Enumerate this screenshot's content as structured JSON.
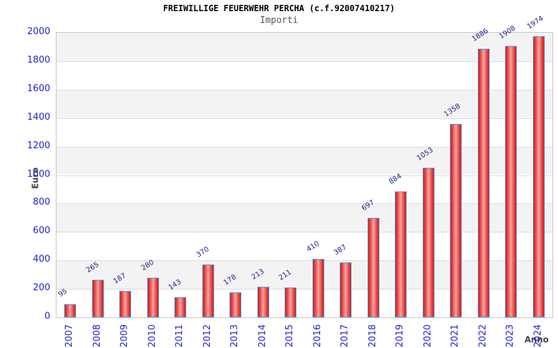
{
  "chart_data": {
    "type": "bar",
    "title": "FREIWILLIGE FEUERWEHR PERCHA (c.f.92007410217)",
    "subtitle": "Importi",
    "xlabel": "Anno",
    "ylabel": "Euro",
    "categories": [
      "2007",
      "2008",
      "2009",
      "2010",
      "2011",
      "2012",
      "2013",
      "2014",
      "2015",
      "2016",
      "2017",
      "2018",
      "2019",
      "2020",
      "2021",
      "2022",
      "2023",
      "2024"
    ],
    "values": [
      95,
      265,
      187,
      280,
      143,
      370,
      178,
      213,
      211,
      410,
      387,
      697,
      884,
      1053,
      1358,
      1886,
      1908,
      1974
    ],
    "ylim": [
      0,
      2000
    ],
    "ytick_step": 200,
    "yticks": [
      0,
      200,
      400,
      600,
      800,
      1000,
      1200,
      1400,
      1600,
      1800,
      2000
    ],
    "grid": "horizontal alternating bands, light gridlines every 200",
    "legend": "none",
    "colors": {
      "bar_edge": "#c32222",
      "bar_center": "#f2a5a0",
      "bar_border": "#5b9bd5",
      "tick_label": "#2222cc",
      "value_label": "#222288",
      "axis_title": "#444444",
      "band": "#f3f3f3",
      "grid_line": "#dcdcdc",
      "title": "#000000",
      "subtitle": "#555555"
    }
  }
}
